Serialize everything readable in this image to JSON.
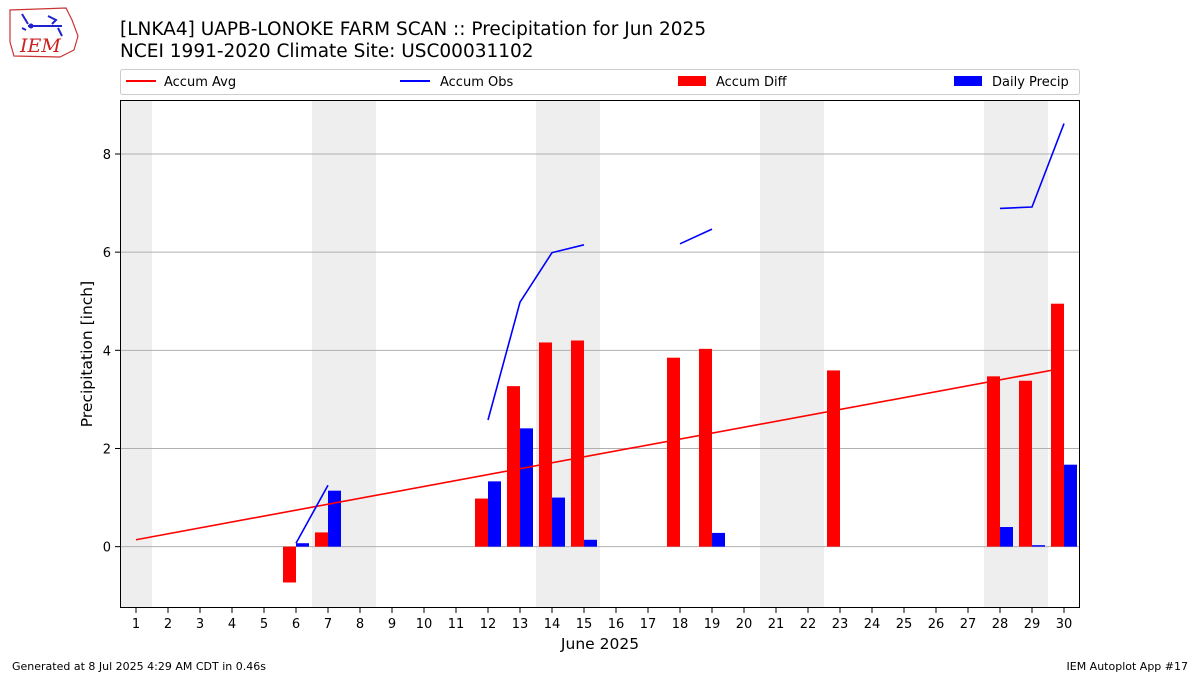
{
  "header": {
    "title_line1": "[LNKA4] UAPB-LONOKE FARM SCAN :: Precipitation for Jun 2025",
    "title_line2": "NCEI 1991-2020 Climate Site: USC00031102"
  },
  "logo": {
    "text": "IEM",
    "icon": "iowa-state-outline-icon"
  },
  "footer": {
    "left": "Generated at 8 Jul 2025 4:29 AM CDT in 0.46s",
    "right": "IEM Autoplot App #17"
  },
  "colors": {
    "accum_avg": "#ff0000",
    "accum_obs": "#0000ff",
    "accum_diff": "#ff0000",
    "daily_precip": "#0000ff",
    "weekend_shade": "#eeeeee",
    "grid": "#b0b0b0"
  },
  "chart_data": {
    "type": "bar",
    "xlabel": "June 2025",
    "ylabel": "Precipitation [inch]",
    "ylim": [
      -1.25,
      9.1
    ],
    "yticks": [
      0,
      2,
      4,
      6,
      8
    ],
    "grid": "horizontal",
    "legend_position": "top",
    "legend": [
      "Accum Avg",
      "Accum Obs",
      "Accum Diff",
      "Daily Precip"
    ],
    "days": [
      1,
      2,
      3,
      4,
      5,
      6,
      7,
      8,
      9,
      10,
      11,
      12,
      13,
      14,
      15,
      16,
      17,
      18,
      19,
      20,
      21,
      22,
      23,
      24,
      25,
      26,
      27,
      28,
      29,
      30
    ],
    "weekend_days": [
      1,
      7,
      8,
      14,
      15,
      21,
      22,
      28,
      29
    ],
    "accum_avg": {
      "start": [
        1,
        0.14
      ],
      "end": [
        30,
        3.64
      ]
    },
    "accum_obs_segments": [
      [
        [
          6,
          0.07
        ],
        [
          7,
          1.25
        ]
      ],
      [
        [
          12,
          2.58
        ],
        [
          13,
          4.98
        ],
        [
          14,
          5.99
        ],
        [
          15,
          6.15
        ]
      ],
      [
        [
          18,
          6.17
        ],
        [
          19,
          6.47
        ]
      ],
      [
        [
          28,
          6.89
        ],
        [
          29,
          6.92
        ],
        [
          30,
          8.62
        ]
      ]
    ],
    "accum_diff": [
      {
        "day": 6,
        "value": -0.73
      },
      {
        "day": 7,
        "value": 0.29
      },
      {
        "day": 12,
        "value": 0.98
      },
      {
        "day": 13,
        "value": 3.27
      },
      {
        "day": 14,
        "value": 4.16
      },
      {
        "day": 15,
        "value": 4.2
      },
      {
        "day": 18,
        "value": 3.85
      },
      {
        "day": 19,
        "value": 4.03
      },
      {
        "day": 23,
        "value": 3.59
      },
      {
        "day": 28,
        "value": 3.47
      },
      {
        "day": 29,
        "value": 3.38
      },
      {
        "day": 30,
        "value": 4.95
      }
    ],
    "daily_precip": [
      {
        "day": 6,
        "value": 0.07
      },
      {
        "day": 7,
        "value": 1.14
      },
      {
        "day": 12,
        "value": 1.33
      },
      {
        "day": 13,
        "value": 2.41
      },
      {
        "day": 14,
        "value": 1.0
      },
      {
        "day": 15,
        "value": 0.14
      },
      {
        "day": 19,
        "value": 0.28
      },
      {
        "day": 28,
        "value": 0.4
      },
      {
        "day": 29,
        "value": 0.03
      },
      {
        "day": 30,
        "value": 1.67
      }
    ]
  }
}
